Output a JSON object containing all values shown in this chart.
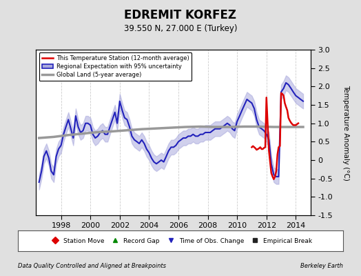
{
  "title": "EDREMIT KORFEZ",
  "subtitle": "39.550 N, 27.000 E (Turkey)",
  "ylabel": "Temperature Anomaly (°C)",
  "ylim": [
    -1.5,
    3.0
  ],
  "xlim": [
    1996.3,
    2015.0
  ],
  "yticks": [
    -1.5,
    -1.0,
    -0.5,
    0.0,
    0.5,
    1.0,
    1.5,
    2.0,
    2.5,
    3.0
  ],
  "xticks": [
    1998,
    2000,
    2002,
    2004,
    2006,
    2008,
    2010,
    2012,
    2014
  ],
  "footer_left": "Data Quality Controlled and Aligned at Breakpoints",
  "footer_right": "Berkeley Earth",
  "legend_items": [
    {
      "label": "This Temperature Station (12-month average)",
      "color": "#dd0000",
      "lw": 1.8
    },
    {
      "label": "Regional Expectation with 95% uncertainty",
      "color": "#2222bb",
      "lw": 1.5,
      "fill": "#aaaadd"
    },
    {
      "label": "Global Land (5-year average)",
      "color": "#999999",
      "lw": 2.5
    }
  ],
  "legend2_items": [
    {
      "label": "Station Move",
      "marker": "D",
      "color": "#dd0000"
    },
    {
      "label": "Record Gap",
      "marker": "^",
      "color": "#008800"
    },
    {
      "label": "Time of Obs. Change",
      "marker": "v",
      "color": "#2222bb"
    },
    {
      "label": "Empirical Break",
      "marker": "s",
      "color": "#222222"
    }
  ],
  "bg_color": "#e0e0e0",
  "plot_bg": "#ffffff",
  "grid_color": "#cccccc",
  "regional_x": [
    1996.5,
    1996.67,
    1996.83,
    1997.0,
    1997.17,
    1997.33,
    1997.5,
    1997.67,
    1997.83,
    1998.0,
    1998.17,
    1998.33,
    1998.5,
    1998.67,
    1998.83,
    1999.0,
    1999.17,
    1999.33,
    1999.5,
    1999.67,
    1999.83,
    2000.0,
    2000.17,
    2000.33,
    2000.5,
    2000.67,
    2000.83,
    2001.0,
    2001.17,
    2001.33,
    2001.5,
    2001.67,
    2001.83,
    2002.0,
    2002.17,
    2002.33,
    2002.5,
    2002.67,
    2002.83,
    2003.0,
    2003.17,
    2003.33,
    2003.5,
    2003.67,
    2003.83,
    2004.0,
    2004.17,
    2004.33,
    2004.5,
    2004.67,
    2004.83,
    2005.0,
    2005.17,
    2005.33,
    2005.5,
    2005.67,
    2005.83,
    2006.0,
    2006.17,
    2006.33,
    2006.5,
    2006.67,
    2006.83,
    2007.0,
    2007.17,
    2007.33,
    2007.5,
    2007.67,
    2007.83,
    2008.0,
    2008.17,
    2008.33,
    2008.5,
    2008.67,
    2008.83,
    2009.0,
    2009.17,
    2009.33,
    2009.5,
    2009.67,
    2009.83,
    2010.0,
    2010.17,
    2010.33,
    2010.5,
    2010.67,
    2010.83,
    2011.0,
    2011.17,
    2011.33,
    2011.5,
    2011.67,
    2011.83,
    2012.0,
    2012.17,
    2012.33,
    2012.5,
    2012.67,
    2012.83,
    2013.0,
    2013.17,
    2013.33,
    2013.5,
    2013.67,
    2013.83,
    2014.0,
    2014.17,
    2014.33,
    2014.5
  ],
  "regional_y": [
    -0.6,
    -0.3,
    0.1,
    0.25,
    0.05,
    -0.3,
    -0.4,
    0.1,
    0.3,
    0.4,
    0.7,
    0.9,
    1.1,
    0.85,
    0.6,
    1.2,
    0.9,
    0.75,
    0.8,
    1.0,
    1.0,
    0.95,
    0.7,
    0.6,
    0.65,
    0.75,
    0.8,
    0.7,
    0.7,
    0.9,
    1.1,
    1.3,
    1.0,
    1.6,
    1.35,
    1.15,
    1.1,
    0.9,
    0.65,
    0.55,
    0.5,
    0.45,
    0.55,
    0.45,
    0.3,
    0.2,
    0.05,
    -0.05,
    -0.1,
    -0.05,
    0.0,
    -0.05,
    0.1,
    0.25,
    0.35,
    0.35,
    0.4,
    0.5,
    0.55,
    0.6,
    0.6,
    0.65,
    0.65,
    0.7,
    0.65,
    0.65,
    0.7,
    0.7,
    0.75,
    0.75,
    0.75,
    0.8,
    0.85,
    0.85,
    0.85,
    0.9,
    0.95,
    1.0,
    0.95,
    0.85,
    0.8,
    1.05,
    1.2,
    1.35,
    1.5,
    1.65,
    1.6,
    1.55,
    1.4,
    1.1,
    0.9,
    0.85,
    0.8,
    0.7,
    0.55,
    -0.1,
    -0.4,
    -0.45,
    -0.45,
    1.85,
    1.95,
    2.1,
    2.05,
    1.95,
    1.85,
    1.75,
    1.7,
    1.65,
    1.6
  ],
  "regional_ub": [
    -0.4,
    -0.1,
    0.3,
    0.45,
    0.25,
    -0.1,
    -0.2,
    0.3,
    0.5,
    0.6,
    0.9,
    1.1,
    1.3,
    1.05,
    0.8,
    1.4,
    1.1,
    0.95,
    1.0,
    1.2,
    1.2,
    1.15,
    0.9,
    0.8,
    0.85,
    0.95,
    1.0,
    0.9,
    0.9,
    1.1,
    1.3,
    1.5,
    1.2,
    1.8,
    1.55,
    1.35,
    1.3,
    1.1,
    0.85,
    0.75,
    0.7,
    0.65,
    0.75,
    0.65,
    0.5,
    0.4,
    0.25,
    0.15,
    0.1,
    0.15,
    0.2,
    0.15,
    0.3,
    0.45,
    0.55,
    0.55,
    0.6,
    0.7,
    0.75,
    0.8,
    0.8,
    0.85,
    0.85,
    0.9,
    0.85,
    0.85,
    0.9,
    0.9,
    0.95,
    0.95,
    0.95,
    1.0,
    1.05,
    1.05,
    1.05,
    1.1,
    1.15,
    1.2,
    1.15,
    1.05,
    1.0,
    1.25,
    1.4,
    1.55,
    1.7,
    1.85,
    1.8,
    1.75,
    1.6,
    1.3,
    1.1,
    1.05,
    1.0,
    0.9,
    0.75,
    0.1,
    -0.2,
    -0.25,
    -0.25,
    2.05,
    2.15,
    2.3,
    2.25,
    2.15,
    2.05,
    1.95,
    1.9,
    1.85,
    1.8
  ],
  "regional_lb": [
    -0.8,
    -0.5,
    -0.1,
    0.05,
    -0.15,
    -0.5,
    -0.6,
    -0.1,
    0.1,
    0.2,
    0.5,
    0.7,
    0.9,
    0.65,
    0.4,
    1.0,
    0.7,
    0.55,
    0.6,
    0.8,
    0.8,
    0.75,
    0.5,
    0.4,
    0.45,
    0.55,
    0.6,
    0.5,
    0.5,
    0.7,
    0.9,
    1.1,
    0.8,
    1.4,
    1.15,
    0.95,
    0.9,
    0.7,
    0.45,
    0.35,
    0.3,
    0.25,
    0.35,
    0.25,
    0.1,
    0.0,
    -0.15,
    -0.25,
    -0.3,
    -0.25,
    -0.2,
    -0.25,
    -0.1,
    0.05,
    0.15,
    0.15,
    0.2,
    0.3,
    0.35,
    0.4,
    0.4,
    0.45,
    0.45,
    0.5,
    0.45,
    0.45,
    0.5,
    0.5,
    0.55,
    0.55,
    0.55,
    0.6,
    0.65,
    0.65,
    0.65,
    0.7,
    0.75,
    0.8,
    0.75,
    0.65,
    0.6,
    0.85,
    1.0,
    1.15,
    1.3,
    1.45,
    1.4,
    1.35,
    1.2,
    0.9,
    0.7,
    0.65,
    0.6,
    0.5,
    0.35,
    -0.3,
    -0.6,
    -0.65,
    -0.65,
    1.65,
    1.75,
    1.9,
    1.85,
    1.75,
    1.65,
    1.55,
    1.5,
    1.45,
    1.4
  ],
  "station_x": [
    2011.0,
    2011.08,
    2011.17,
    2011.25,
    2011.33,
    2011.42,
    2011.5,
    2011.58,
    2011.67,
    2011.75,
    2011.83,
    2011.92,
    2012.0,
    2012.08,
    2012.17,
    2012.25,
    2012.33,
    2012.42,
    2012.5,
    2012.58,
    2012.67,
    2012.75,
    2012.83,
    2012.92,
    2013.0,
    2013.08,
    2013.17,
    2013.25,
    2013.33,
    2013.42,
    2013.5,
    2013.58,
    2013.67,
    2013.75,
    2013.83,
    2013.92,
    2014.0,
    2014.17
  ],
  "station_y": [
    0.35,
    0.38,
    0.35,
    0.32,
    0.28,
    0.3,
    0.32,
    0.35,
    0.3,
    0.3,
    0.33,
    0.35,
    1.7,
    1.0,
    0.25,
    -0.05,
    -0.35,
    -0.45,
    -0.52,
    -0.45,
    -0.3,
    0.15,
    0.35,
    0.38,
    1.82,
    1.8,
    1.75,
    1.55,
    1.45,
    1.35,
    1.15,
    1.08,
    1.02,
    0.98,
    0.95,
    0.95,
    0.95,
    1.0
  ],
  "global_x": [
    1996.5,
    1997.5,
    1998.5,
    1999.5,
    2000.5,
    2001.5,
    2002.5,
    2003.5,
    2004.5,
    2005.5,
    2006.5,
    2007.5,
    2008.5,
    2009.5,
    2010.5,
    2011.5,
    2012.5,
    2013.5,
    2014.5
  ],
  "global_y": [
    0.6,
    0.63,
    0.68,
    0.72,
    0.76,
    0.78,
    0.81,
    0.84,
    0.86,
    0.88,
    0.9,
    0.91,
    0.9,
    0.9,
    0.91,
    0.91,
    0.9,
    0.9,
    0.9
  ]
}
